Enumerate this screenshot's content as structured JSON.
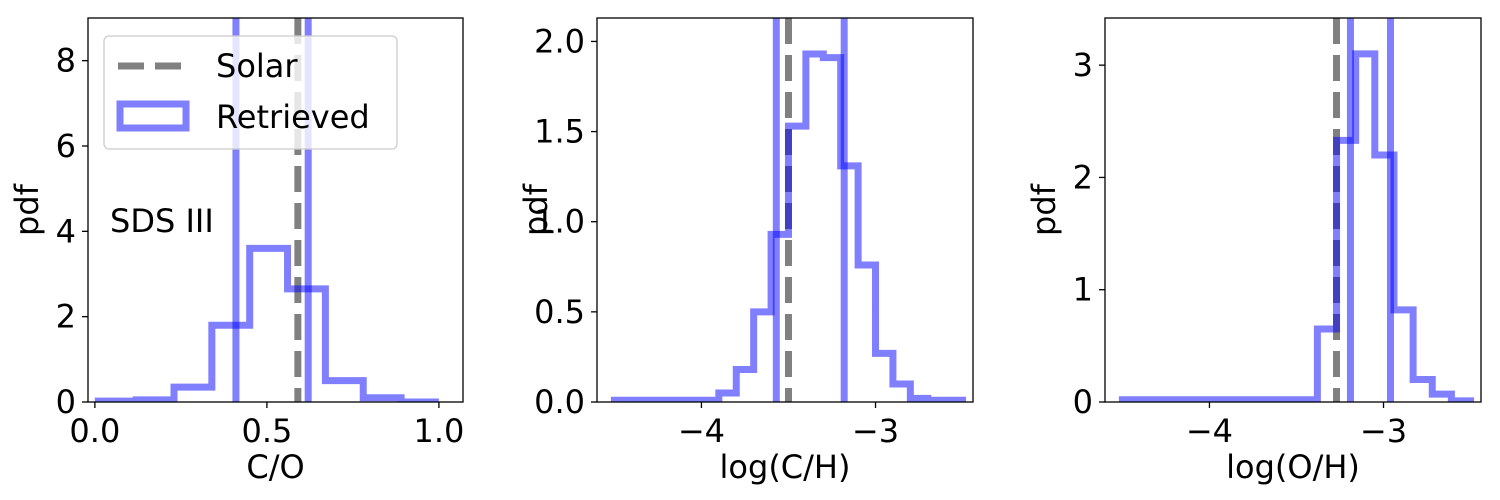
{
  "colors": {
    "retrieved": "#0000ff",
    "solar": "#808080"
  },
  "legend": {
    "placement": "upper-left of first panel",
    "entries": [
      "Solar",
      "Retrieved"
    ]
  },
  "chart_data": [
    {
      "type": "histogram",
      "xlabel": "C/O",
      "ylabel": "pdf",
      "annotation": "SDS III",
      "xlim": [
        -0.02,
        1.07
      ],
      "ylim": [
        0,
        9.0
      ],
      "xticks": [
        0.0,
        0.5,
        1.0
      ],
      "xtick_labels": [
        "0.0",
        "0.5",
        "1.0"
      ],
      "yticks": [
        0,
        2,
        4,
        6,
        8
      ],
      "ytick_labels": [
        "0",
        "2",
        "4",
        "6",
        "8"
      ],
      "solar": 0.59,
      "retrieved_bounds": [
        0.41,
        0.62
      ],
      "series": [
        {
          "name": "Retrieved",
          "bin_edges": [
            0.01,
            0.12,
            0.23,
            0.34,
            0.45,
            0.56,
            0.67,
            0.78,
            0.89,
            1.0
          ],
          "values": [
            0.02,
            0.05,
            0.35,
            1.8,
            3.6,
            2.65,
            0.5,
            0.1,
            0.0
          ]
        }
      ]
    },
    {
      "type": "histogram",
      "xlabel": "log(C/H)",
      "ylabel": "pdf",
      "xlim": [
        -4.6,
        -2.44
      ],
      "ylim": [
        0,
        2.13
      ],
      "xticks": [
        -4,
        -3
      ],
      "xtick_labels": [
        "−4",
        "−3"
      ],
      "yticks": [
        0.0,
        0.5,
        1.0,
        1.5,
        2.0
      ],
      "ytick_labels": [
        "0.0",
        "0.5",
        "1.0",
        "1.5",
        "2.0"
      ],
      "solar": -3.5,
      "retrieved_bounds": [
        -3.57,
        -3.18
      ],
      "series": [
        {
          "name": "Retrieved",
          "bin_edges": [
            -4.5,
            -3.9,
            -3.8,
            -3.7,
            -3.6,
            -3.5,
            -3.4,
            -3.3,
            -3.2,
            -3.1,
            -3.0,
            -2.9,
            -2.8,
            -2.7,
            -2.5
          ],
          "values": [
            0.01,
            0.05,
            0.18,
            0.5,
            0.93,
            1.53,
            1.93,
            1.91,
            1.31,
            0.76,
            0.27,
            0.1,
            0.02,
            0.01
          ]
        }
      ]
    },
    {
      "type": "histogram",
      "xlabel": "log(O/H)",
      "ylabel": "pdf",
      "xlim": [
        -4.6,
        -2.44
      ],
      "ylim": [
        0,
        3.42
      ],
      "xticks": [
        -4,
        -3
      ],
      "xtick_labels": [
        "−4",
        "−3"
      ],
      "yticks": [
        0,
        1,
        2,
        3
      ],
      "ytick_labels": [
        "0",
        "1",
        "2",
        "3"
      ],
      "solar": -3.27,
      "retrieved_bounds": [
        -3.19,
        -2.96
      ],
      "series": [
        {
          "name": "Retrieved",
          "bin_edges": [
            -4.5,
            -3.38,
            -3.27,
            -3.16,
            -3.05,
            -2.94,
            -2.83,
            -2.72,
            -2.61,
            -2.5
          ],
          "values": [
            0.02,
            0.65,
            2.33,
            3.1,
            2.2,
            0.82,
            0.2,
            0.07,
            0.01
          ]
        }
      ]
    }
  ]
}
